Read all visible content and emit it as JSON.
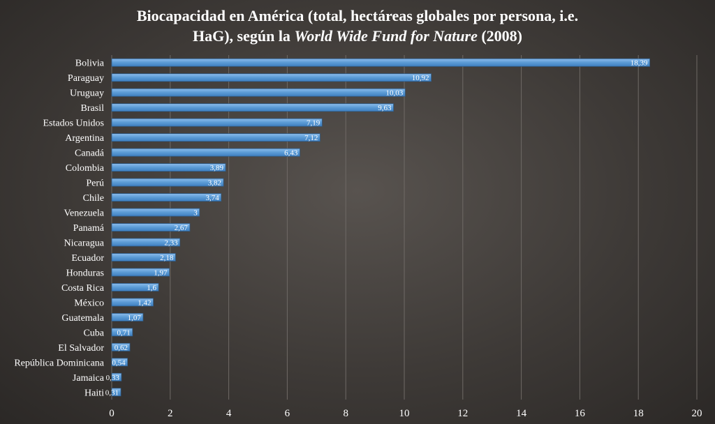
{
  "chart_data": {
    "type": "bar",
    "orientation": "horizontal",
    "title_parts": {
      "prefix": "Biocapacidad en América (total, hectáreas globales por persona, i.e.",
      "line2_start": "HaG), según la ",
      "italic": "World Wide Fund for Nature",
      "line2_end": " (2008)"
    },
    "categories": [
      "Bolivia",
      "Paraguay",
      "Uruguay",
      "Brasil",
      "Estados Unidos",
      "Argentina",
      "Canadá",
      "Colombia",
      "Perú",
      "Chile",
      "Venezuela",
      "Panamá",
      "Nicaragua",
      "Ecuador",
      "Honduras",
      "Costa Rica",
      "México",
      "Guatemala",
      "Cuba",
      "El Salvador",
      "República Dominicana",
      "Jamaica",
      "Haiti"
    ],
    "values": [
      18.39,
      10.92,
      10.03,
      9.63,
      7.19,
      7.12,
      6.43,
      3.89,
      3.82,
      3.74,
      3,
      2.67,
      2.33,
      2.18,
      1.97,
      1.6,
      1.42,
      1.07,
      0.71,
      0.62,
      0.54,
      0.33,
      0.31
    ],
    "value_labels": [
      "18,39",
      "10,92",
      "10,03",
      "9,63",
      "7,19",
      "7,12",
      "6,43",
      "3,89",
      "3,82",
      "3,74",
      "3",
      "2,67",
      "2,33",
      "2,18",
      "1,97",
      "1,6",
      "1,42",
      "1,07",
      "0,71",
      "0,62",
      "0,54",
      "0,33",
      "0,31"
    ],
    "xlim": [
      0,
      20
    ],
    "xticks": [
      "0",
      "2",
      "4",
      "6",
      "8",
      "10",
      "12",
      "14",
      "16",
      "18",
      "20"
    ],
    "grid": "vertical",
    "legend": "none",
    "bar_color": "#5b9bd5"
  }
}
